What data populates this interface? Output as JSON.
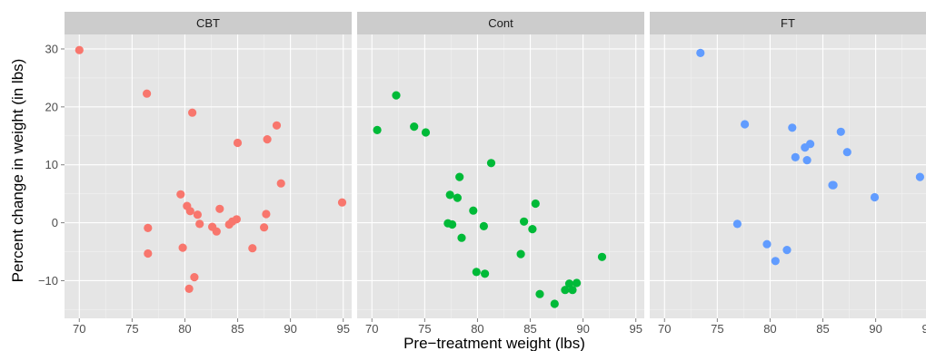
{
  "chart_data": {
    "type": "scatter",
    "title": "",
    "xlabel": "Pre−treatment weight (lbs)",
    "ylabel": "Percent change in weight (in lbs)",
    "xlim": [
      68.6,
      95.8
    ],
    "ylim": [
      -16.5,
      32.5
    ],
    "x_ticks": [
      70,
      75,
      80,
      85,
      90,
      95
    ],
    "x_tick_labels": [
      "70",
      "75",
      "80",
      "85",
      "90",
      "95"
    ],
    "y_ticks": [
      -10,
      0,
      10,
      20,
      30
    ],
    "y_tick_labels": [
      "−10",
      "0",
      "10",
      "20",
      "30"
    ],
    "grid": true,
    "legend": "none",
    "facets": [
      {
        "label": "CBT",
        "color": "#F8766D",
        "points": [
          [
            70.0,
            29.8
          ],
          [
            76.4,
            22.3
          ],
          [
            76.5,
            -0.9
          ],
          [
            76.5,
            -5.3
          ],
          [
            79.6,
            4.9
          ],
          [
            79.8,
            -4.3
          ],
          [
            80.2,
            2.9
          ],
          [
            80.4,
            -11.4
          ],
          [
            80.5,
            2.0
          ],
          [
            80.7,
            19.0
          ],
          [
            80.9,
            -9.4
          ],
          [
            81.2,
            1.4
          ],
          [
            81.4,
            -0.2
          ],
          [
            82.6,
            -0.7
          ],
          [
            83.0,
            -1.5
          ],
          [
            83.3,
            2.4
          ],
          [
            84.2,
            -0.3
          ],
          [
            84.5,
            0.2
          ],
          [
            84.9,
            0.6
          ],
          [
            85.0,
            13.8
          ],
          [
            86.4,
            -4.4
          ],
          [
            87.5,
            -0.8
          ],
          [
            87.7,
            1.5
          ],
          [
            87.8,
            14.4
          ],
          [
            88.7,
            16.8
          ],
          [
            89.1,
            6.8
          ],
          [
            94.9,
            3.5
          ]
        ]
      },
      {
        "label": "Cont",
        "color": "#00BA38",
        "points": [
          [
            70.5,
            16.0
          ],
          [
            72.3,
            22.0
          ],
          [
            74.0,
            16.6
          ],
          [
            75.1,
            15.6
          ],
          [
            77.2,
            -0.1
          ],
          [
            77.4,
            4.8
          ],
          [
            77.6,
            -0.3
          ],
          [
            78.1,
            4.3
          ],
          [
            78.3,
            7.9
          ],
          [
            78.5,
            -2.6
          ],
          [
            79.6,
            2.1
          ],
          [
            79.9,
            -8.5
          ],
          [
            80.6,
            -0.6
          ],
          [
            80.7,
            -8.8
          ],
          [
            81.3,
            10.3
          ],
          [
            84.1,
            -5.4
          ],
          [
            84.4,
            0.2
          ],
          [
            85.2,
            -1.1
          ],
          [
            85.5,
            3.3
          ],
          [
            85.9,
            -12.3
          ],
          [
            87.3,
            -14.0
          ],
          [
            88.3,
            -11.6
          ],
          [
            88.7,
            -10.5
          ],
          [
            89.0,
            -11.6
          ],
          [
            89.4,
            -10.4
          ],
          [
            91.8,
            -5.9
          ]
        ]
      },
      {
        "label": "FT",
        "color": "#619CFF",
        "points": [
          [
            73.4,
            29.3
          ],
          [
            76.9,
            -0.2
          ],
          [
            77.6,
            17.0
          ],
          [
            79.7,
            -3.7
          ],
          [
            80.5,
            -6.6
          ],
          [
            81.6,
            -4.7
          ],
          [
            82.1,
            16.4
          ],
          [
            82.4,
            11.3
          ],
          [
            83.3,
            13.0
          ],
          [
            83.5,
            10.8
          ],
          [
            83.8,
            13.6
          ],
          [
            85.9,
            6.5
          ],
          [
            86.0,
            6.5
          ],
          [
            86.7,
            15.7
          ],
          [
            87.3,
            12.2
          ],
          [
            89.9,
            4.4
          ],
          [
            94.2,
            7.9
          ]
        ]
      }
    ]
  }
}
